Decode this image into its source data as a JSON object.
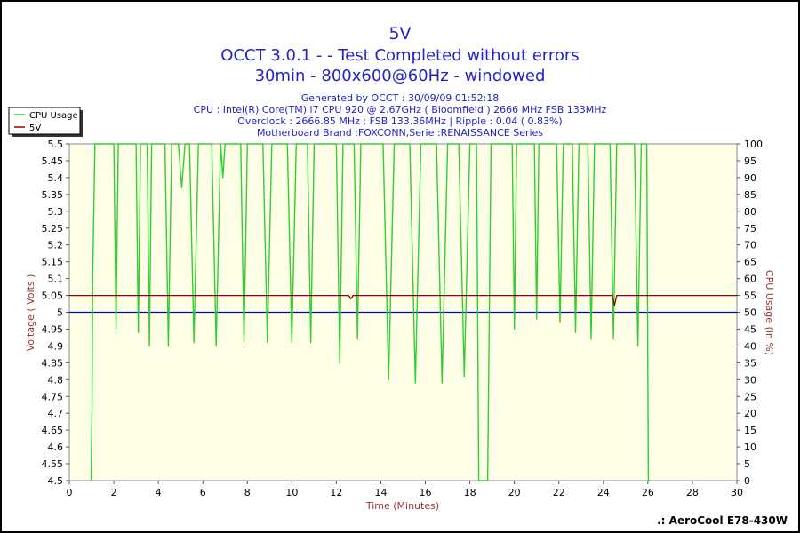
{
  "chart_data": {
    "type": "line",
    "title": "5V",
    "subtitle_lines": [
      "OCCT 3.0.1 -  - Test Completed without errors",
      "30min - 800x600@60Hz - windowed"
    ],
    "info_lines": [
      "Generated by OCCT : 30/09/09 01:52:18",
      "CPU : Intel(R) Core(TM) i7 CPU 920 @ 2.67GHz ( Bloomfield ) 2666 MHz FSB 133MHz",
      "Overclock : 2666.85 MHz ; FSB 133.36MHz | Ripple : 0.04 ( 0.83%)",
      "Motherboard Brand :FOXCONN,Serie :RENAISSANCE Series"
    ],
    "xlabel": "Time (Minutes)",
    "ylabel": "Voltage ( Volts )",
    "y2label": "CPU Usage (in %)",
    "xlim": [
      0,
      30
    ],
    "ylim": [
      4.5,
      5.5
    ],
    "y2lim": [
      0,
      100
    ],
    "x_ticks": [
      "0",
      "2",
      "4",
      "6",
      "8",
      "10",
      "12",
      "14",
      "16",
      "18",
      "20",
      "22",
      "24",
      "26",
      "28",
      "30"
    ],
    "y_ticks": [
      "4.5",
      "4.55",
      "4.6",
      "4.65",
      "4.7",
      "4.75",
      "4.8",
      "4.85",
      "4.9",
      "4.95",
      "5",
      "5.05",
      "5.1",
      "5.15",
      "5.2",
      "5.25",
      "5.3",
      "5.35",
      "5.4",
      "5.45",
      "5.5"
    ],
    "y2_ticks": [
      "0",
      "5",
      "10",
      "15",
      "20",
      "25",
      "30",
      "35",
      "40",
      "45",
      "50",
      "55",
      "60",
      "65",
      "70",
      "75",
      "80",
      "85",
      "90",
      "95",
      "100"
    ],
    "grid": false,
    "legend_position": "top-left",
    "legend": [
      "CPU Usage",
      "5V"
    ],
    "reference_line": 5.0,
    "series": [
      {
        "name": "CPU Usage",
        "axis": "right",
        "color": "#33cc33",
        "x": [
          0.98,
          1.02,
          1.05,
          1.15,
          1.3,
          2.0,
          2.1,
          2.2,
          2.3,
          3.0,
          3.1,
          3.2,
          3.3,
          3.5,
          3.6,
          3.7,
          4.3,
          4.45,
          4.6,
          4.9,
          5.05,
          5.2,
          5.4,
          5.6,
          5.8,
          6.4,
          6.6,
          6.8,
          6.9,
          7.0,
          7.7,
          7.85,
          8.0,
          8.7,
          8.9,
          9.1,
          9.8,
          10.0,
          10.2,
          10.7,
          10.85,
          11.0,
          12.0,
          12.15,
          12.3,
          12.8,
          12.95,
          13.1,
          14.1,
          14.35,
          14.6,
          15.3,
          15.55,
          15.8,
          16.5,
          16.75,
          17.0,
          17.5,
          17.75,
          18.0,
          18.3,
          18.4,
          18.5,
          18.7,
          18.8,
          18.95,
          19.9,
          20.0,
          20.1,
          20.9,
          21.0,
          21.1,
          21.9,
          22.05,
          22.2,
          22.6,
          22.75,
          22.9,
          23.3,
          23.45,
          23.6,
          24.3,
          24.45,
          24.6,
          24.7,
          25.4,
          25.55,
          25.7,
          25.95,
          26.02,
          26.05,
          26.1
        ],
        "values": [
          0,
          20,
          60,
          100,
          100,
          100,
          45,
          100,
          100,
          100,
          44,
          100,
          100,
          100,
          40,
          100,
          100,
          40,
          100,
          100,
          87,
          100,
          100,
          41,
          100,
          100,
          40,
          100,
          90,
          100,
          100,
          41,
          100,
          100,
          41,
          100,
          100,
          41,
          100,
          100,
          41,
          100,
          100,
          35,
          100,
          100,
          42,
          100,
          100,
          30,
          100,
          100,
          29,
          100,
          100,
          29,
          100,
          100,
          31,
          100,
          100,
          0,
          0,
          0,
          0,
          100,
          100,
          45,
          100,
          100,
          48,
          100,
          100,
          47,
          100,
          100,
          44,
          100,
          100,
          42,
          100,
          100,
          42,
          100,
          100,
          100,
          40,
          100,
          100,
          0,
          0,
          0
        ]
      },
      {
        "name": "5V",
        "axis": "left",
        "color": "#990000",
        "x": [
          0,
          12.55,
          12.65,
          12.75,
          24.4,
          24.5,
          24.6,
          30
        ],
        "values": [
          5.05,
          5.05,
          5.04,
          5.05,
          5.05,
          5.02,
          5.05,
          5.05
        ]
      }
    ]
  },
  "footer": {
    "credit": ".: AeroCool E78-430W"
  },
  "colors": {
    "plot_background": "#ffffe8",
    "title": "#2222cc",
    "info": "#2222cc",
    "axis_label": "#993333",
    "reference_line": "#0000cc"
  }
}
